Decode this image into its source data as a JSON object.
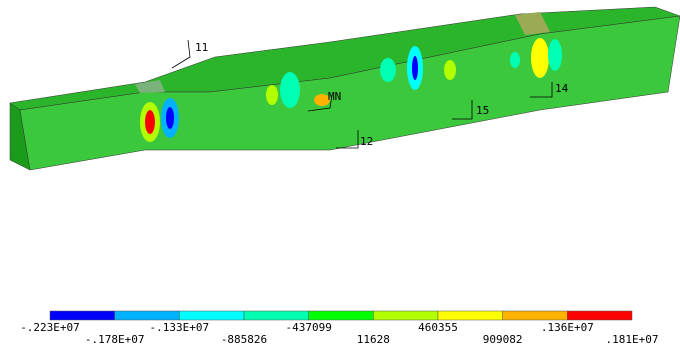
{
  "labels": {
    "node_11": "11",
    "node_12": "12",
    "node_14": "14",
    "node_15": "15",
    "min": "MN"
  },
  "legend": {
    "colors": [
      "#0000ff",
      "#00b2ff",
      "#00ffff",
      "#00ffb2",
      "#00ff00",
      "#b2ff00",
      "#ffff00",
      "#ffb200",
      "#ff0000"
    ],
    "labels": [
      "-.223E+07",
      "-.178E+07",
      "-.133E+07",
      "-885826",
      "-437099",
      "11628",
      "460355",
      "909082",
      ".136E+07",
      ".181E+07"
    ]
  }
}
